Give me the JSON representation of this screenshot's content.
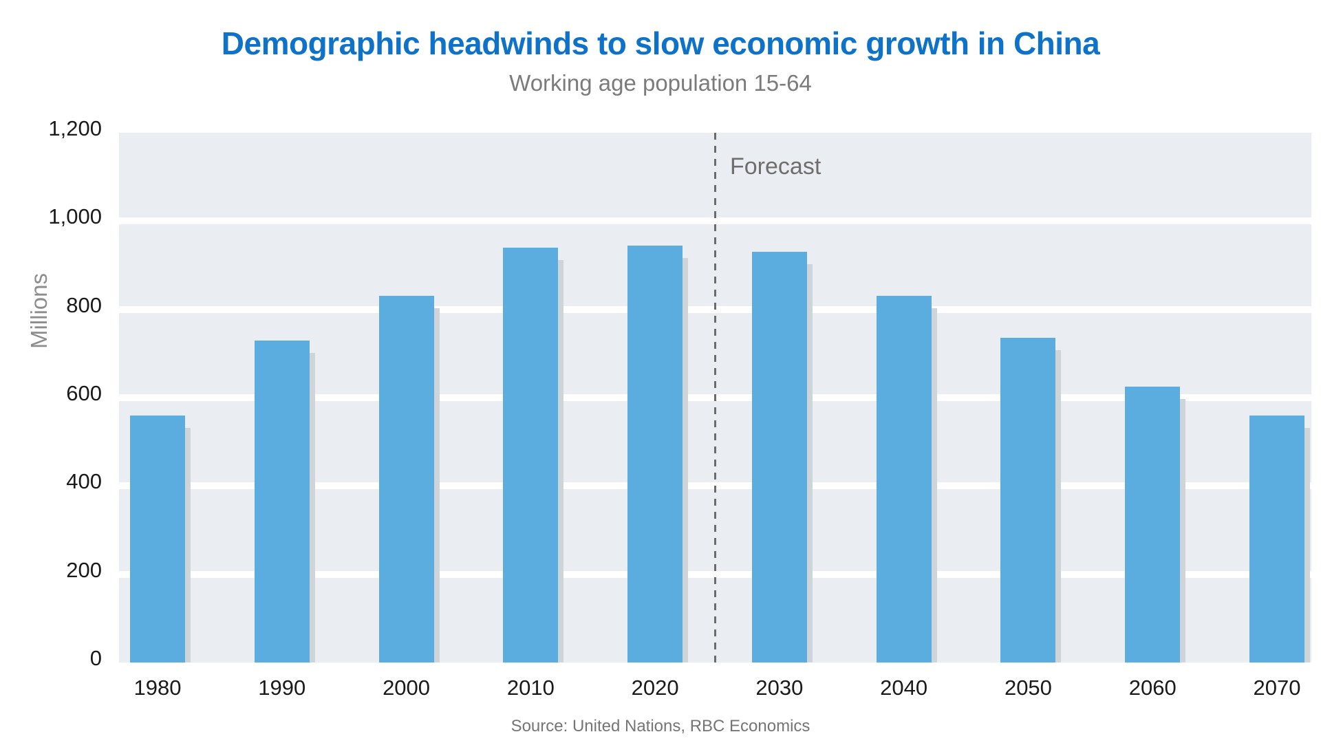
{
  "header": {
    "title": "Demographic headwinds to slow economic growth in China",
    "subtitle": "Working age population 15-64",
    "title_color": "#0d72c8",
    "subtitle_color": "#7b7b7b"
  },
  "chart_data": {
    "type": "bar",
    "title": "Demographic headwinds to slow economic growth in China",
    "subtitle": "Working age population 15-64",
    "ylabel": "Millions",
    "xlabel": "",
    "categories": [
      "1980",
      "1990",
      "2000",
      "2010",
      "2020",
      "2030",
      "2040",
      "2050",
      "2060",
      "2070"
    ],
    "values": [
      560,
      730,
      830,
      940,
      945,
      930,
      830,
      735,
      625,
      560
    ],
    "ylim": [
      0,
      1200
    ],
    "ytick_step": 200,
    "ytick_labels": [
      "1,200",
      "1,000",
      "800",
      "600",
      "400",
      "200",
      "0"
    ],
    "grid": "horizontal white gridlines on light-gray plot background",
    "legend": "none",
    "annotation": {
      "label": "Forecast",
      "divider": "vertical dashed line between 2020 and 2030",
      "divider_color": "#6b6b6b",
      "label_color": "#6e6e6e"
    },
    "bar_color": "#5bade0",
    "bar_shadow_color": "#cfd4d8",
    "plot_background": "#eaeef2",
    "tick_color": "#1a1a1a",
    "ylabel_color": "#8d8d8d"
  },
  "footer": {
    "source": "Source: United Nations, RBC Economics"
  }
}
